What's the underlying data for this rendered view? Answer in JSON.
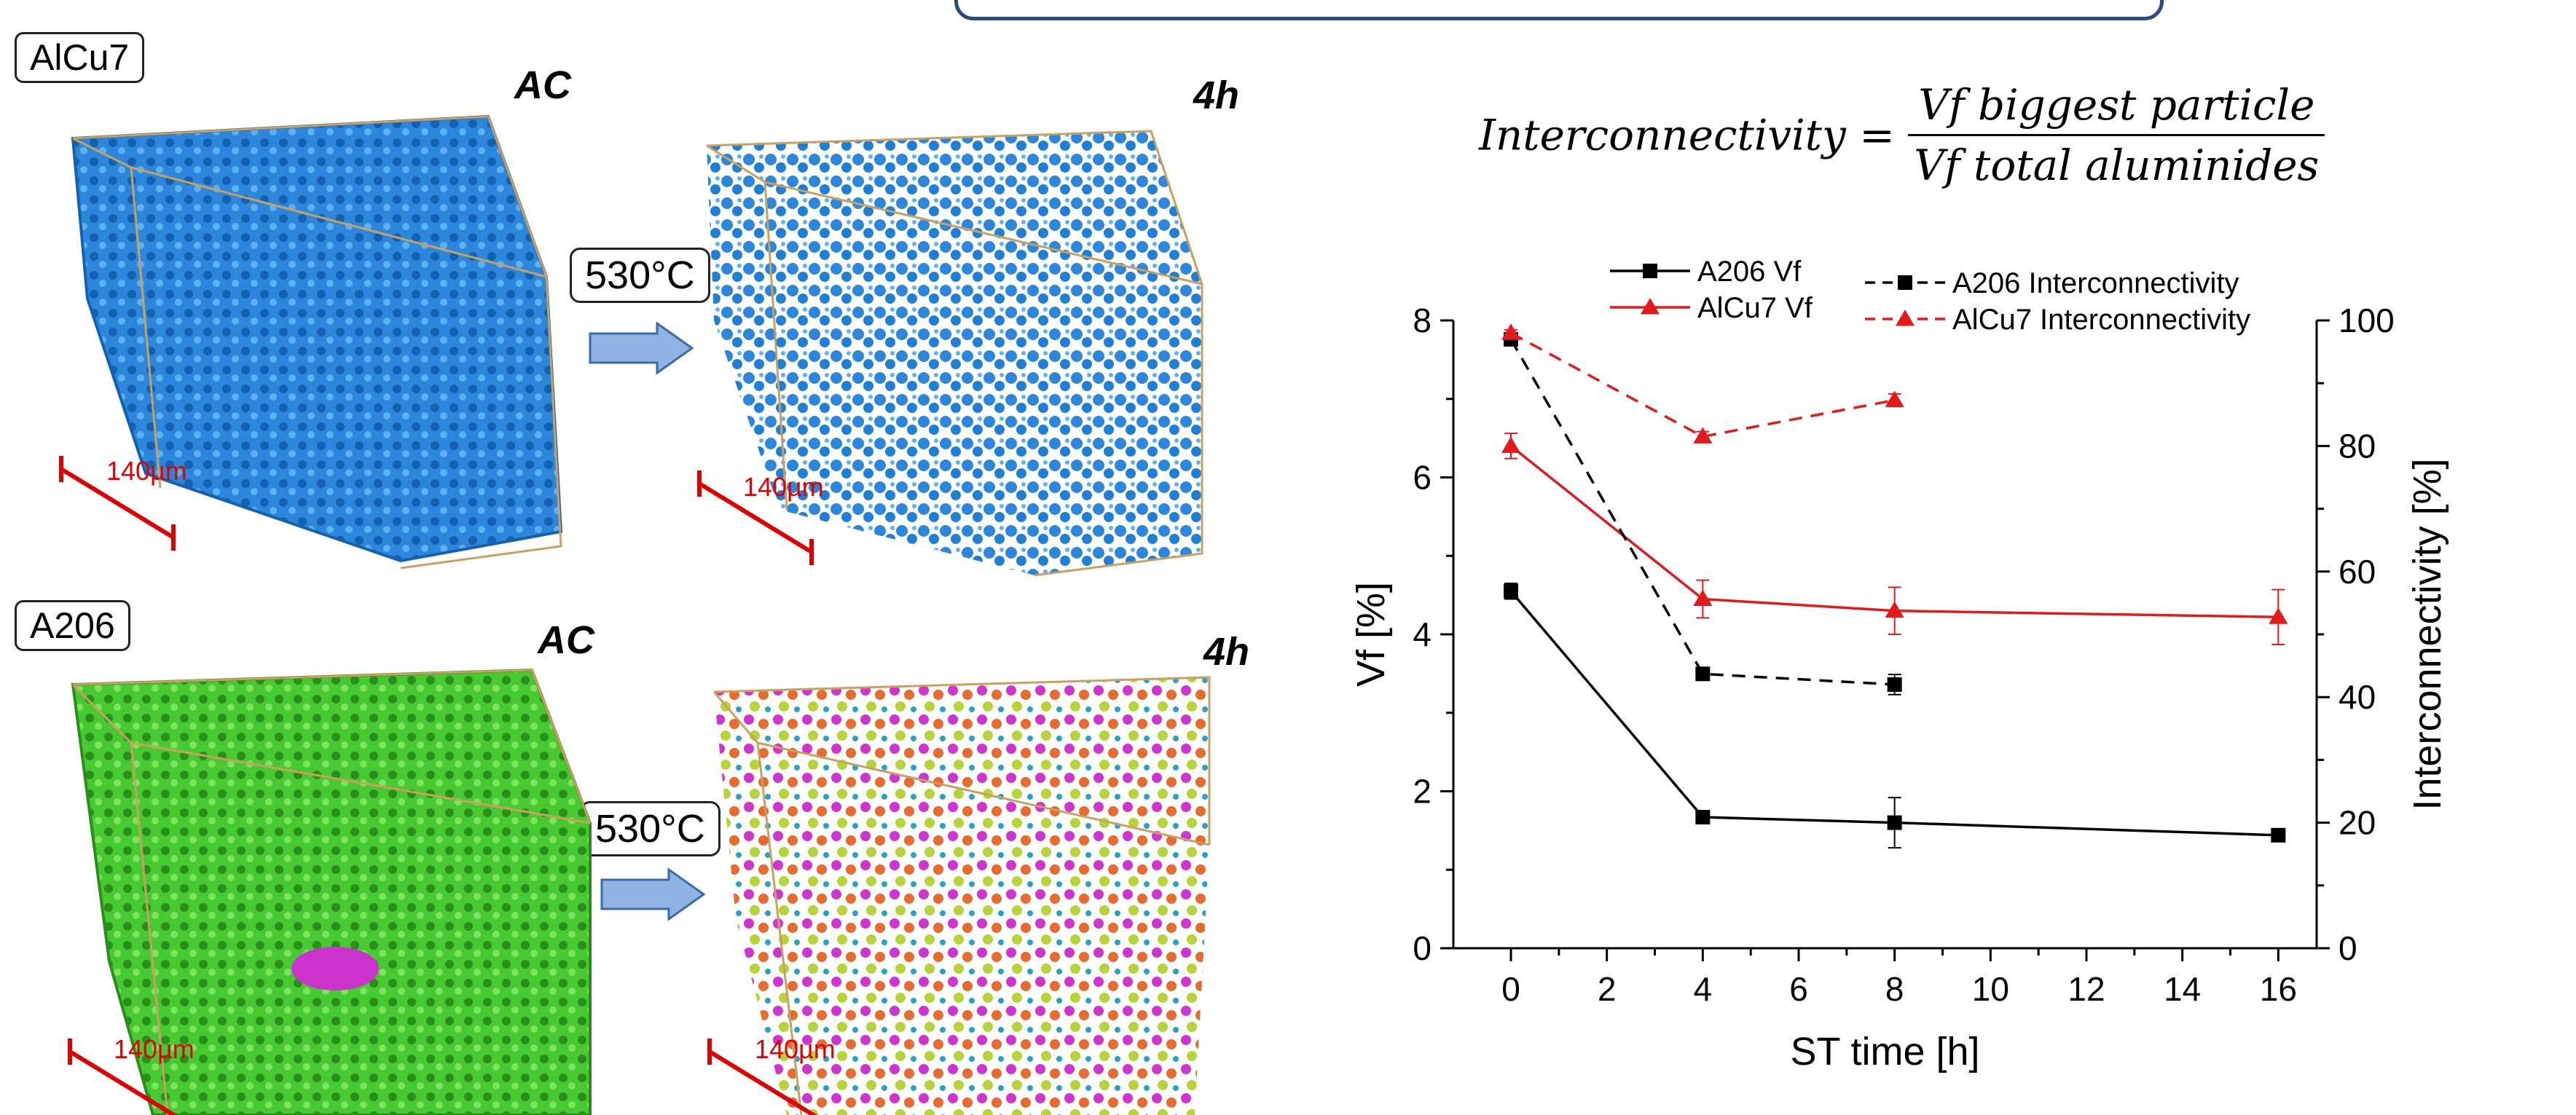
{
  "panels": {
    "alcu7_label": "AlCu7",
    "a206_label": "A206",
    "ac_label": "AC",
    "h4_label": "4h",
    "temperature": "530°C",
    "scale_bar": "140µm"
  },
  "formula": {
    "lhs": "Interconnectivity =",
    "numerator": "Vf biggest particle",
    "denominator": "Vf total aluminides"
  },
  "colors": {
    "alcu7_volume": "#1e7fd6",
    "a206_volume": "#3fc32a",
    "a206_series": "#000000",
    "alcu7_series": "#e31a1c",
    "scale_bar": "#e00000",
    "arrow_fill": "#8eb4e3"
  },
  "chart_data": {
    "type": "line",
    "xlabel": "ST time [h]",
    "ylabel": "Vf [%]",
    "y2label": "Interconnectivity [%]",
    "xlim": [
      -1.2,
      16.8
    ],
    "ylim": [
      0,
      8
    ],
    "y2lim": [
      0,
      100
    ],
    "xticks": [
      0,
      2,
      4,
      6,
      8,
      10,
      12,
      14,
      16
    ],
    "yticks": [
      0,
      2,
      4,
      6,
      8
    ],
    "y2ticks": [
      0,
      20,
      40,
      60,
      80,
      100
    ],
    "legend_position": "top",
    "series": [
      {
        "name": "A206 Vf",
        "axis": "left",
        "color": "#000000",
        "marker": "square",
        "dash": false,
        "x": [
          0,
          4,
          8,
          16
        ],
        "y": [
          4.55,
          1.67,
          1.6,
          1.44
        ],
        "err": [
          0.1,
          0.04,
          0.32,
          0.06
        ]
      },
      {
        "name": "AlCu7 Vf",
        "axis": "left",
        "color": "#e31a1c",
        "marker": "triangle",
        "dash": false,
        "x": [
          0,
          4,
          8,
          16
        ],
        "y": [
          6.4,
          4.45,
          4.3,
          4.22
        ],
        "err": [
          0.16,
          0.24,
          0.3,
          0.35
        ]
      },
      {
        "name": "A206 Interconnectivity",
        "axis": "right",
        "color": "#000000",
        "marker": "square",
        "dash": true,
        "x": [
          0,
          4,
          8
        ],
        "y": [
          97,
          43.7,
          42
        ],
        "err": [
          0.8,
          0.6,
          1.6
        ]
      },
      {
        "name": "AlCu7 Interconnectivity",
        "axis": "right",
        "color": "#e31a1c",
        "marker": "triangle",
        "dash": true,
        "x": [
          0,
          4,
          8
        ],
        "y": [
          98,
          81.5,
          87.3
        ],
        "err": [
          0.5,
          0.8,
          1.0
        ]
      }
    ]
  }
}
